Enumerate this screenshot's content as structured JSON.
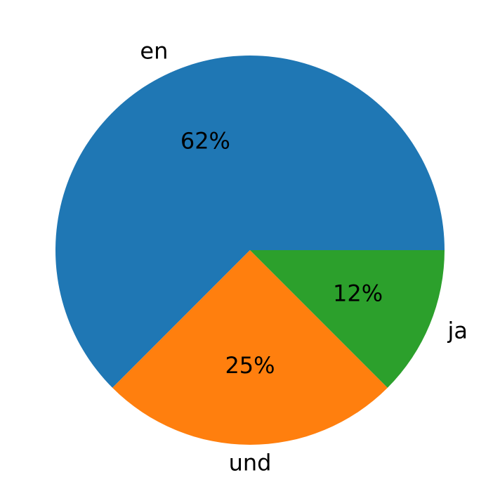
{
  "chart_data": {
    "type": "pie",
    "categories": [
      "en",
      "und",
      "ja"
    ],
    "values": [
      62.5,
      25,
      12.5
    ],
    "value_labels": [
      "62%",
      "25%",
      "12%"
    ],
    "colors": [
      "#1f77b4",
      "#ff7f0e",
      "#2ca02c"
    ]
  }
}
